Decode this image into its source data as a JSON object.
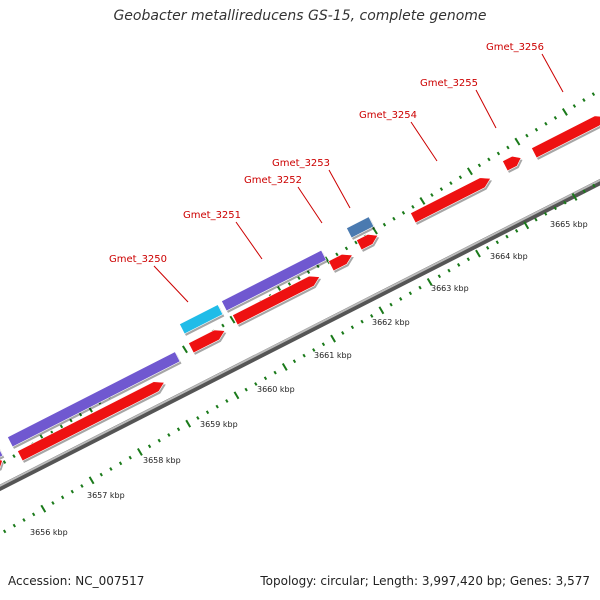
{
  "title": "Geobacter metallireducens GS-15, complete genome",
  "footer": {
    "accession": "Accession: NC_007517",
    "summary": "Topology: circular; Length: 3,997,420 bp; Genes: 3,577"
  },
  "colors": {
    "gene_red": "#ee1111",
    "gene_purple": "#7058d0",
    "gene_cyan": "#20bce8",
    "gene_steel": "#4a7ab0",
    "tick_green": "#1a7a1a",
    "label_red": "#cc0000"
  },
  "gene_labels": [
    "Gmet_3250",
    "Gmet_3251",
    "Gmet_3252",
    "Gmet_3253",
    "Gmet_3254",
    "Gmet_3255",
    "Gmet_3256"
  ],
  "scale_labels": [
    "3656 kbp",
    "3657 kbp",
    "3658 kbp",
    "3659 kbp",
    "3660 kbp",
    "3661 kbp",
    "3662 kbp",
    "3663 kbp",
    "3664 kbp",
    "3665 kbp"
  ]
}
